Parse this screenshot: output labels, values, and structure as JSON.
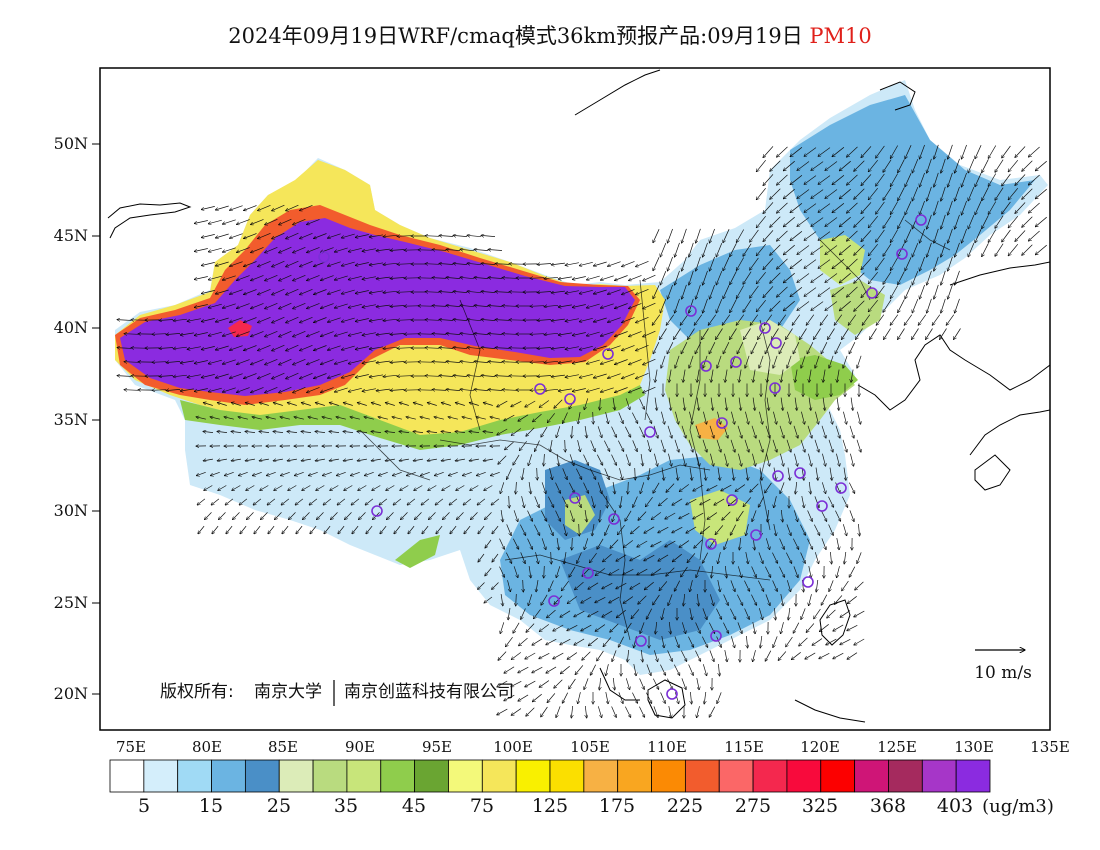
{
  "header": {
    "title_main": "2024年09月19日WRF/cmaq模式36km预报产品:09月19日",
    "title_pollutant": "PM10",
    "pollutant_color": "#e0201a"
  },
  "map": {
    "lat_labels": [
      "50N",
      "45N",
      "40N",
      "35N",
      "30N",
      "25N",
      "20N"
    ],
    "lon_labels": [
      "75E",
      "80E",
      "85E",
      "90E",
      "95E",
      "100E",
      "105E",
      "110E",
      "115E",
      "120E",
      "125E",
      "130E",
      "135E"
    ],
    "copyright_prefix": "版权所有:",
    "copyright_org1": "南京大学",
    "copyright_org2": "南京创蓝科技有限公司",
    "wind_reference": "10 m/s",
    "station_marker_color": "#7b2fd6"
  },
  "colorbar": {
    "colors": [
      "#ffffff",
      "#d4eefb",
      "#a0daf5",
      "#6bb4e2",
      "#4a8fc7",
      "#dcecb8",
      "#b9db7f",
      "#c8e57a",
      "#8fcd4c",
      "#6aa532",
      "#f3f97a",
      "#f5e65a",
      "#f9f000",
      "#fbdf00",
      "#f7b144",
      "#f9a620",
      "#fb8a04",
      "#f25c2d",
      "#fb6767",
      "#f4284e",
      "#f80a3c",
      "#fc0000",
      "#cf1577",
      "#a52a5e",
      "#a636c8",
      "#8b2be0"
    ],
    "labels": [
      "5",
      "15",
      "25",
      "35",
      "45",
      "75",
      "125",
      "175",
      "225",
      "275",
      "325",
      "368",
      "403"
    ],
    "unit": "(ug/m3)"
  }
}
